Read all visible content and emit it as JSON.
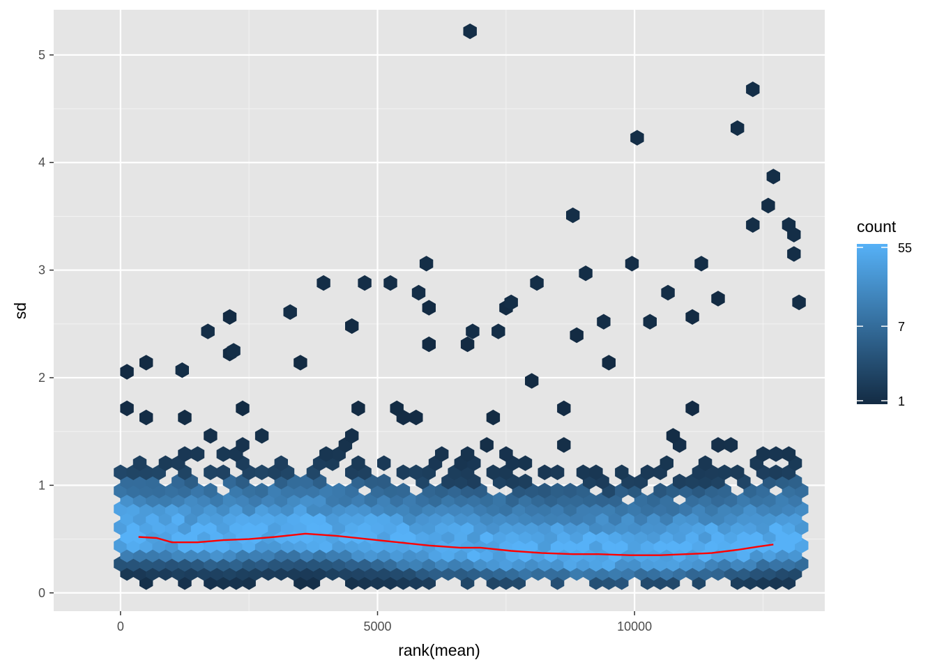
{
  "chart_data": {
    "type": "hexbin",
    "xlabel": "rank(mean)",
    "ylabel": "sd",
    "xlim": [
      -1300,
      13700
    ],
    "ylim": [
      -0.17,
      5.42
    ],
    "x_ticks": [
      0,
      5000,
      10000
    ],
    "x_tick_labels": [
      "0",
      "5000",
      "10000"
    ],
    "y_ticks": [
      0,
      1,
      2,
      3,
      4,
      5
    ],
    "y_tick_labels": [
      "0",
      "1",
      "2",
      "3",
      "4",
      "5"
    ],
    "grid": true,
    "panel_background": "#e5e5e5",
    "grid_color": "#ffffff",
    "legend": {
      "title": "count",
      "placement": "right",
      "scale": "log",
      "labels": [
        "55",
        "7",
        "1"
      ],
      "breaks": [
        55,
        7,
        1
      ],
      "color_low": "#132b43",
      "color_high": "#56b1f7"
    },
    "density_profile": {
      "x": [
        300,
        2000,
        3500,
        5000,
        6500,
        8000,
        9500,
        11000,
        12000,
        13100
      ],
      "y_center": [
        0.52,
        0.48,
        0.52,
        0.46,
        0.4,
        0.36,
        0.35,
        0.37,
        0.42,
        0.46
      ]
    },
    "outliers": [
      {
        "x": 6800,
        "y": 5.22
      },
      {
        "x": 12300,
        "y": 4.68
      },
      {
        "x": 10050,
        "y": 4.23
      },
      {
        "x": 12000,
        "y": 4.32
      },
      {
        "x": 12700,
        "y": 3.87
      },
      {
        "x": 8800,
        "y": 3.51
      },
      {
        "x": 12600,
        "y": 3.6
      },
      {
        "x": 13000,
        "y": 3.42
      },
      {
        "x": 13100,
        "y": 3.33
      },
      {
        "x": 12300,
        "y": 3.42
      },
      {
        "x": 13100,
        "y": 3.15
      },
      {
        "x": 9950,
        "y": 3.06
      },
      {
        "x": 5950,
        "y": 3.06
      },
      {
        "x": 11300,
        "y": 3.06
      },
      {
        "x": 3950,
        "y": 2.88
      },
      {
        "x": 4750,
        "y": 2.88
      },
      {
        "x": 5250,
        "y": 2.88
      },
      {
        "x": 8100,
        "y": 2.88
      },
      {
        "x": 9050,
        "y": 2.97
      },
      {
        "x": 5800,
        "y": 2.79
      },
      {
        "x": 7600,
        "y": 2.7
      },
      {
        "x": 10650,
        "y": 2.79
      },
      {
        "x": 3300,
        "y": 2.61
      },
      {
        "x": 1700,
        "y": 2.43
      },
      {
        "x": 2200,
        "y": 2.25
      },
      {
        "x": 1200,
        "y": 2.07
      },
      {
        "x": 6850,
        "y": 2.43
      },
      {
        "x": 7350,
        "y": 2.43
      },
      {
        "x": 9400,
        "y": 2.52
      },
      {
        "x": 10300,
        "y": 2.52
      },
      {
        "x": 13200,
        "y": 2.7
      }
    ],
    "smooth_line": {
      "color": "#ff0000",
      "x": [
        350,
        700,
        1000,
        1500,
        2000,
        2500,
        3000,
        3600,
        4200,
        4800,
        5400,
        6000,
        6600,
        7000,
        7600,
        8200,
        8800,
        9300,
        9900,
        10500,
        11000,
        11500,
        12000,
        12400,
        12700
      ],
      "y": [
        0.52,
        0.51,
        0.47,
        0.47,
        0.49,
        0.5,
        0.52,
        0.55,
        0.53,
        0.5,
        0.47,
        0.44,
        0.42,
        0.42,
        0.39,
        0.37,
        0.36,
        0.36,
        0.35,
        0.35,
        0.36,
        0.37,
        0.4,
        0.43,
        0.45
      ]
    }
  }
}
